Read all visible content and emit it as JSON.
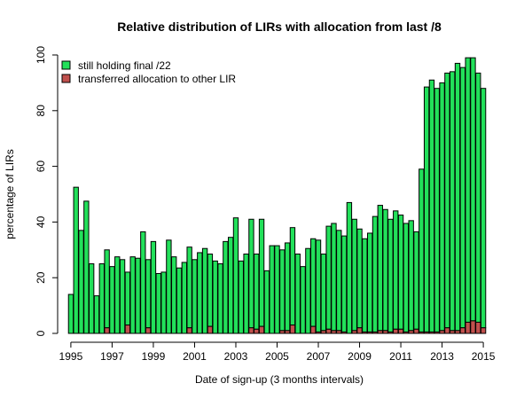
{
  "chart_data": {
    "type": "bar",
    "stacked": true,
    "title": "Relative distribution of LIRs with allocation from last /8",
    "xlabel": "Date of sign-up (3 months intervals)",
    "ylabel": "percentage of LIRs",
    "ylim": [
      0,
      100
    ],
    "y_ticks": [
      0,
      20,
      40,
      60,
      80,
      100
    ],
    "x_ticks": [
      "1995",
      "1997",
      "1999",
      "2001",
      "2003",
      "2005",
      "2007",
      "2009",
      "2011",
      "2013",
      "2015"
    ],
    "x_start_quarter": "1995 Q1",
    "legend_position": "top-left",
    "grid": false,
    "series": [
      {
        "name": "still holding final /22",
        "color": "#22E05A",
        "values": [
          14,
          52.5,
          37,
          47.5,
          25,
          13.5,
          25,
          28,
          24,
          27.5,
          26.5,
          19,
          27.5,
          27,
          36.5,
          24.5,
          33,
          21.5,
          22,
          33.5,
          27.5,
          23.5,
          25.5,
          29,
          26.5,
          29,
          30.5,
          26,
          26,
          25,
          33,
          34.5,
          41.5,
          26,
          28.5,
          39,
          27,
          38.5,
          22.5,
          31.5,
          31.5,
          29,
          31.5,
          35,
          28.5,
          24,
          30.5,
          31.5,
          33,
          27.5,
          37,
          38.5,
          36,
          34.5,
          47,
          40,
          35.5,
          33.5,
          35.5,
          41.5,
          45,
          43.5,
          40.5,
          42.5,
          41,
          39,
          39.5,
          35,
          58.5,
          88,
          90.5,
          87.5,
          89,
          91.5,
          93,
          96,
          93.5,
          95,
          94.5,
          89.5,
          86
        ]
      },
      {
        "name": "transferred allocation to other LIR",
        "color": "#C0504D",
        "values": [
          0,
          0,
          0,
          0,
          0,
          0,
          0,
          2,
          0,
          0,
          0,
          3,
          0,
          0,
          0,
          2,
          0,
          0,
          0,
          0,
          0,
          0,
          0,
          2,
          0,
          0,
          0,
          2.5,
          0,
          0,
          0,
          0,
          0,
          0,
          0,
          2,
          1.5,
          2.5,
          0,
          0,
          0,
          1,
          1,
          3,
          0,
          0,
          0,
          2.5,
          0.5,
          1,
          1.5,
          1,
          1,
          0.5,
          0,
          1,
          2,
          0.5,
          0.5,
          0.5,
          1,
          1,
          0.5,
          1.5,
          1.5,
          0.5,
          1,
          1.5,
          0.5,
          0.5,
          0.5,
          0.5,
          1,
          2,
          1,
          1,
          2,
          4,
          4.5,
          4,
          2
        ]
      }
    ]
  }
}
